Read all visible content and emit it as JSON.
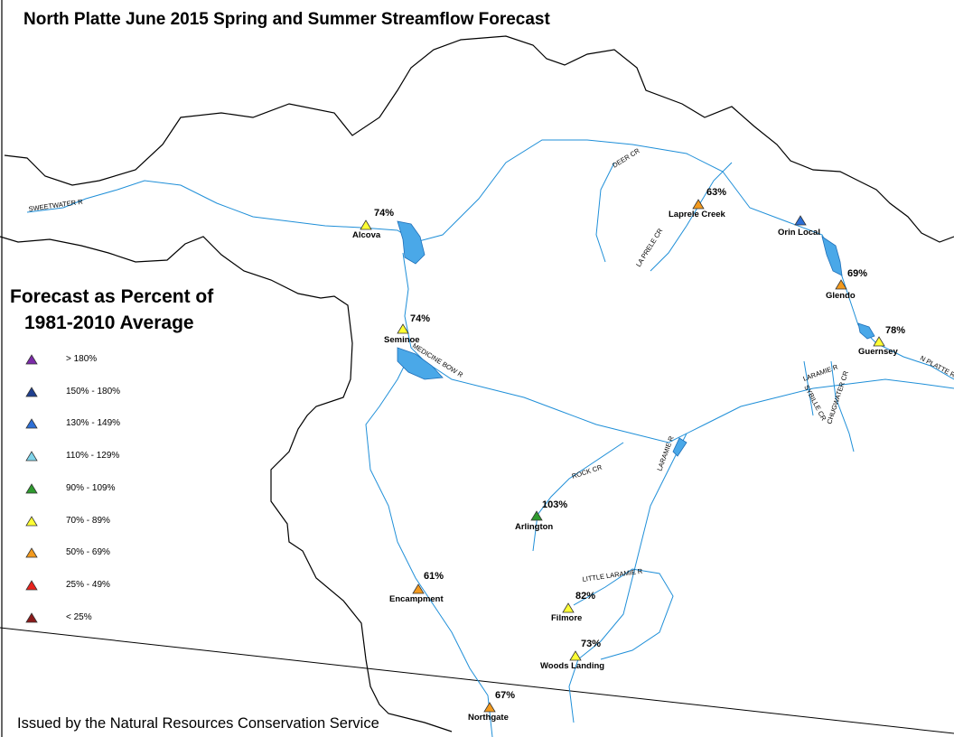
{
  "title": "North Platte June 2015 Spring and Summer Streamflow Forecast",
  "legend": {
    "title_line1": "Forecast as Percent of",
    "title_line2": "1981-2010 Average",
    "items": [
      {
        "label": "> 180%",
        "color": "#7b2aa8"
      },
      {
        "label": "150% - 180%",
        "color": "#1f3f8f"
      },
      {
        "label": "130% - 149%",
        "color": "#2d6fd6"
      },
      {
        "label": "110% - 129%",
        "color": "#7fd4ea"
      },
      {
        "label": "90% - 109%",
        "color": "#2e9a2e"
      },
      {
        "label": "70% - 89%",
        "color": "#ffff33"
      },
      {
        "label": "50% - 69%",
        "color": "#f39a1e"
      },
      {
        "label": "25% - 49%",
        "color": "#e8221c"
      },
      {
        "label": "< 25%",
        "color": "#8b1a1a"
      }
    ]
  },
  "stations": [
    {
      "name": "Alcova",
      "percent": "74%",
      "color": "#ffff33"
    },
    {
      "name": "Laprele Creek",
      "percent": "63%",
      "color": "#f39a1e"
    },
    {
      "name": "Orin Local",
      "percent": "",
      "color": "#2d6fd6"
    },
    {
      "name": "Glendo",
      "percent": "69%",
      "color": "#f39a1e"
    },
    {
      "name": "Guernsey",
      "percent": "78%",
      "color": "#ffff33"
    },
    {
      "name": "Seminoe",
      "percent": "74%",
      "color": "#ffff33"
    },
    {
      "name": "Arlington",
      "percent": "103%",
      "color": "#2e9a2e"
    },
    {
      "name": "Encampment",
      "percent": "61%",
      "color": "#f39a1e"
    },
    {
      "name": "Filmore",
      "percent": "82%",
      "color": "#ffff33"
    },
    {
      "name": "Woods Landing",
      "percent": "73%",
      "color": "#ffff33"
    },
    {
      "name": "Northgate",
      "percent": "67%",
      "color": "#f39a1e"
    }
  ],
  "river_labels": [
    "SWEETWATER R",
    "DEER CR",
    "LA PRELE CR",
    "N PLATTE R",
    "MEDICINE BOW R",
    "LARAMIE R",
    "SYBILLE CR",
    "CHUGWATER CR",
    "LARAMIE R",
    "ROCK CR",
    "LITTLE LARAMIE R"
  ],
  "footer": "Issued by the Natural Resources Conservation Service",
  "colors": {
    "river": "#1f8fd8",
    "reservoir": "#4aa8e8",
    "boundary": "#000000"
  }
}
